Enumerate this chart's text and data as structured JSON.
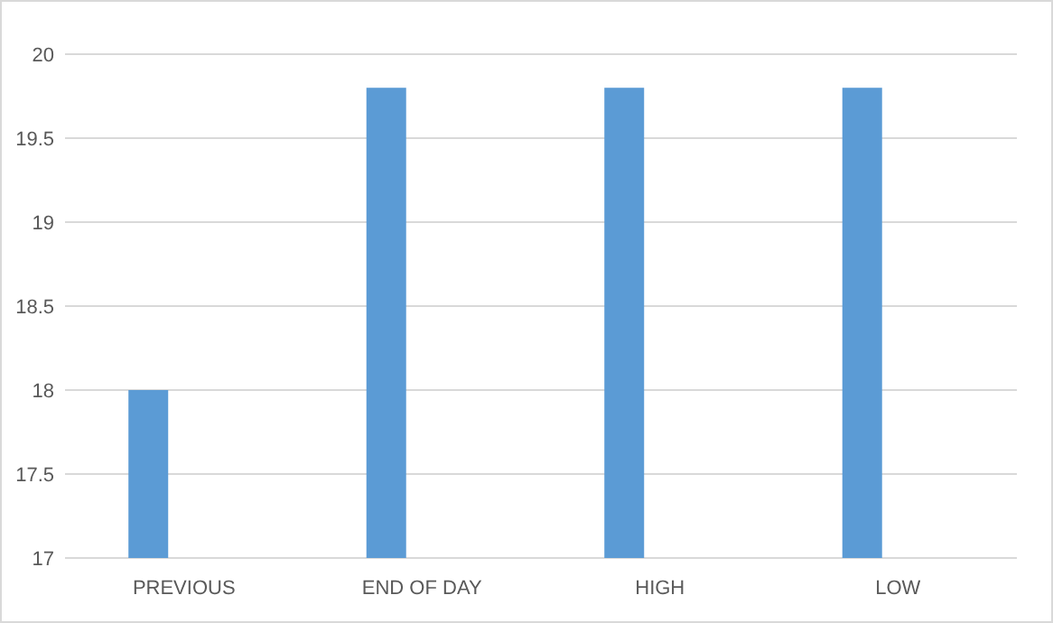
{
  "chart_data": {
    "type": "bar",
    "categories": [
      "PREVIOUS",
      "END OF DAY",
      "HIGH",
      "LOW"
    ],
    "values": [
      18,
      19.8,
      19.8,
      19.8
    ],
    "color": "#5b9bd5",
    "ylim": [
      17,
      20
    ],
    "yticks": [
      17,
      17.5,
      18,
      18.5,
      19,
      19.5,
      20
    ],
    "grid": "y"
  }
}
